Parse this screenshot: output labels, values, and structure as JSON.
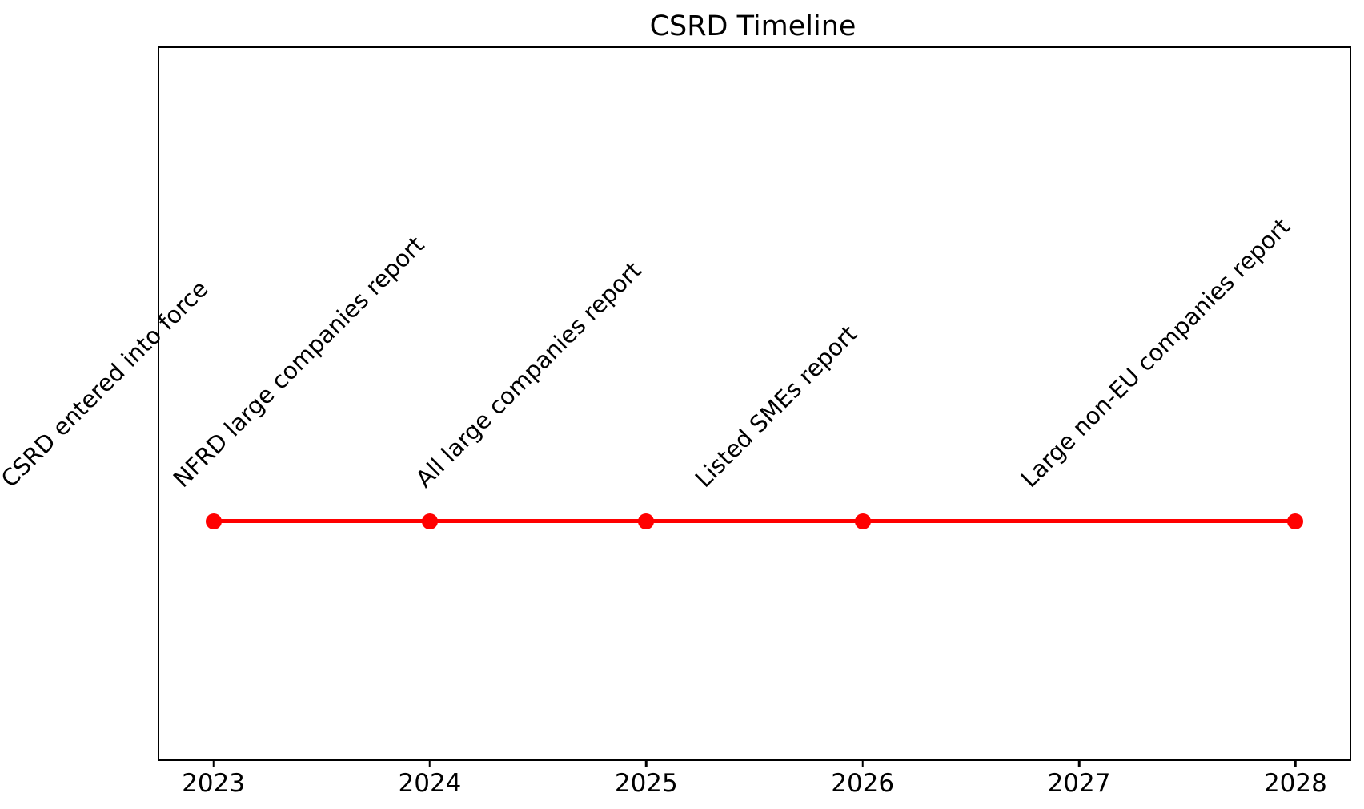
{
  "chart_data": {
    "type": "line",
    "subtype": "timeline",
    "title": "CSRD Timeline",
    "xlabel": "",
    "ylabel": "",
    "xlim": [
      2022.75,
      2028.25
    ],
    "xticks": [
      {
        "value": 2023,
        "label": "2023"
      },
      {
        "value": 2024,
        "label": "2024"
      },
      {
        "value": 2025,
        "label": "2025"
      },
      {
        "value": 2026,
        "label": "2026"
      },
      {
        "value": 2027,
        "label": "2027"
      },
      {
        "value": 2028,
        "label": "2028"
      }
    ],
    "events": [
      {
        "year": 2023,
        "label": "CSRD entered into force"
      },
      {
        "year": 2024,
        "label": "NFRD large companies report"
      },
      {
        "year": 2025,
        "label": "All large companies report"
      },
      {
        "year": 2026,
        "label": "Listed SMEs report"
      },
      {
        "year": 2028,
        "label": "Large non-EU companies report"
      }
    ],
    "label_rotation_deg": 45,
    "marker": "o",
    "line_color": "#ff0000",
    "marker_color": "#ff0000",
    "axis_color": "#000000",
    "text_color": "#000000",
    "grid": false,
    "legend": "none",
    "yticks": "none"
  }
}
